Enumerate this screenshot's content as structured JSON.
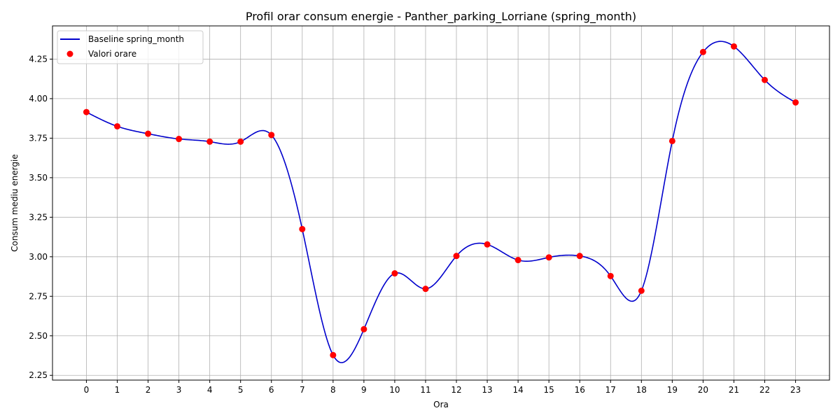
{
  "chart_data": {
    "type": "line",
    "title": "Profil orar consum energie - Panther_parking_Lorriane (spring_month)",
    "xlabel": "Ora",
    "ylabel": "Consum mediu energie",
    "x": [
      0,
      1,
      2,
      3,
      4,
      5,
      6,
      7,
      8,
      9,
      10,
      11,
      12,
      13,
      14,
      15,
      16,
      17,
      18,
      19,
      20,
      21,
      22,
      23
    ],
    "x_ticks": [
      "0",
      "1",
      "2",
      "3",
      "4",
      "5",
      "6",
      "7",
      "8",
      "9",
      "10",
      "11",
      "12",
      "13",
      "14",
      "15",
      "16",
      "17",
      "18",
      "19",
      "20",
      "21",
      "22",
      "23"
    ],
    "y_ticks": [
      "2.25",
      "2.50",
      "2.75",
      "3.00",
      "3.25",
      "3.50",
      "3.75",
      "4.00",
      "4.25"
    ],
    "xlim": [
      -1.1,
      24.1
    ],
    "ylim": [
      2.22,
      4.46
    ],
    "grid": true,
    "legend_position": "top-left",
    "series": [
      {
        "name": "Baseline spring_month",
        "kind": "line",
        "color": "#0000cc",
        "values": [
          3.915,
          3.825,
          3.778,
          3.745,
          3.728,
          3.728,
          3.77,
          3.175,
          2.378,
          2.542,
          2.895,
          2.797,
          3.005,
          3.078,
          2.979,
          2.996,
          3.005,
          2.878,
          2.785,
          3.732,
          4.295,
          4.33,
          4.118,
          3.976
        ]
      },
      {
        "name": "Valori orare",
        "kind": "scatter",
        "color": "#ff0000",
        "values": [
          3.915,
          3.825,
          3.778,
          3.745,
          3.728,
          3.728,
          3.77,
          3.175,
          2.378,
          2.542,
          2.895,
          2.797,
          3.005,
          3.078,
          2.979,
          2.996,
          3.005,
          2.878,
          2.785,
          3.732,
          4.295,
          4.33,
          4.118,
          3.976
        ]
      }
    ]
  }
}
